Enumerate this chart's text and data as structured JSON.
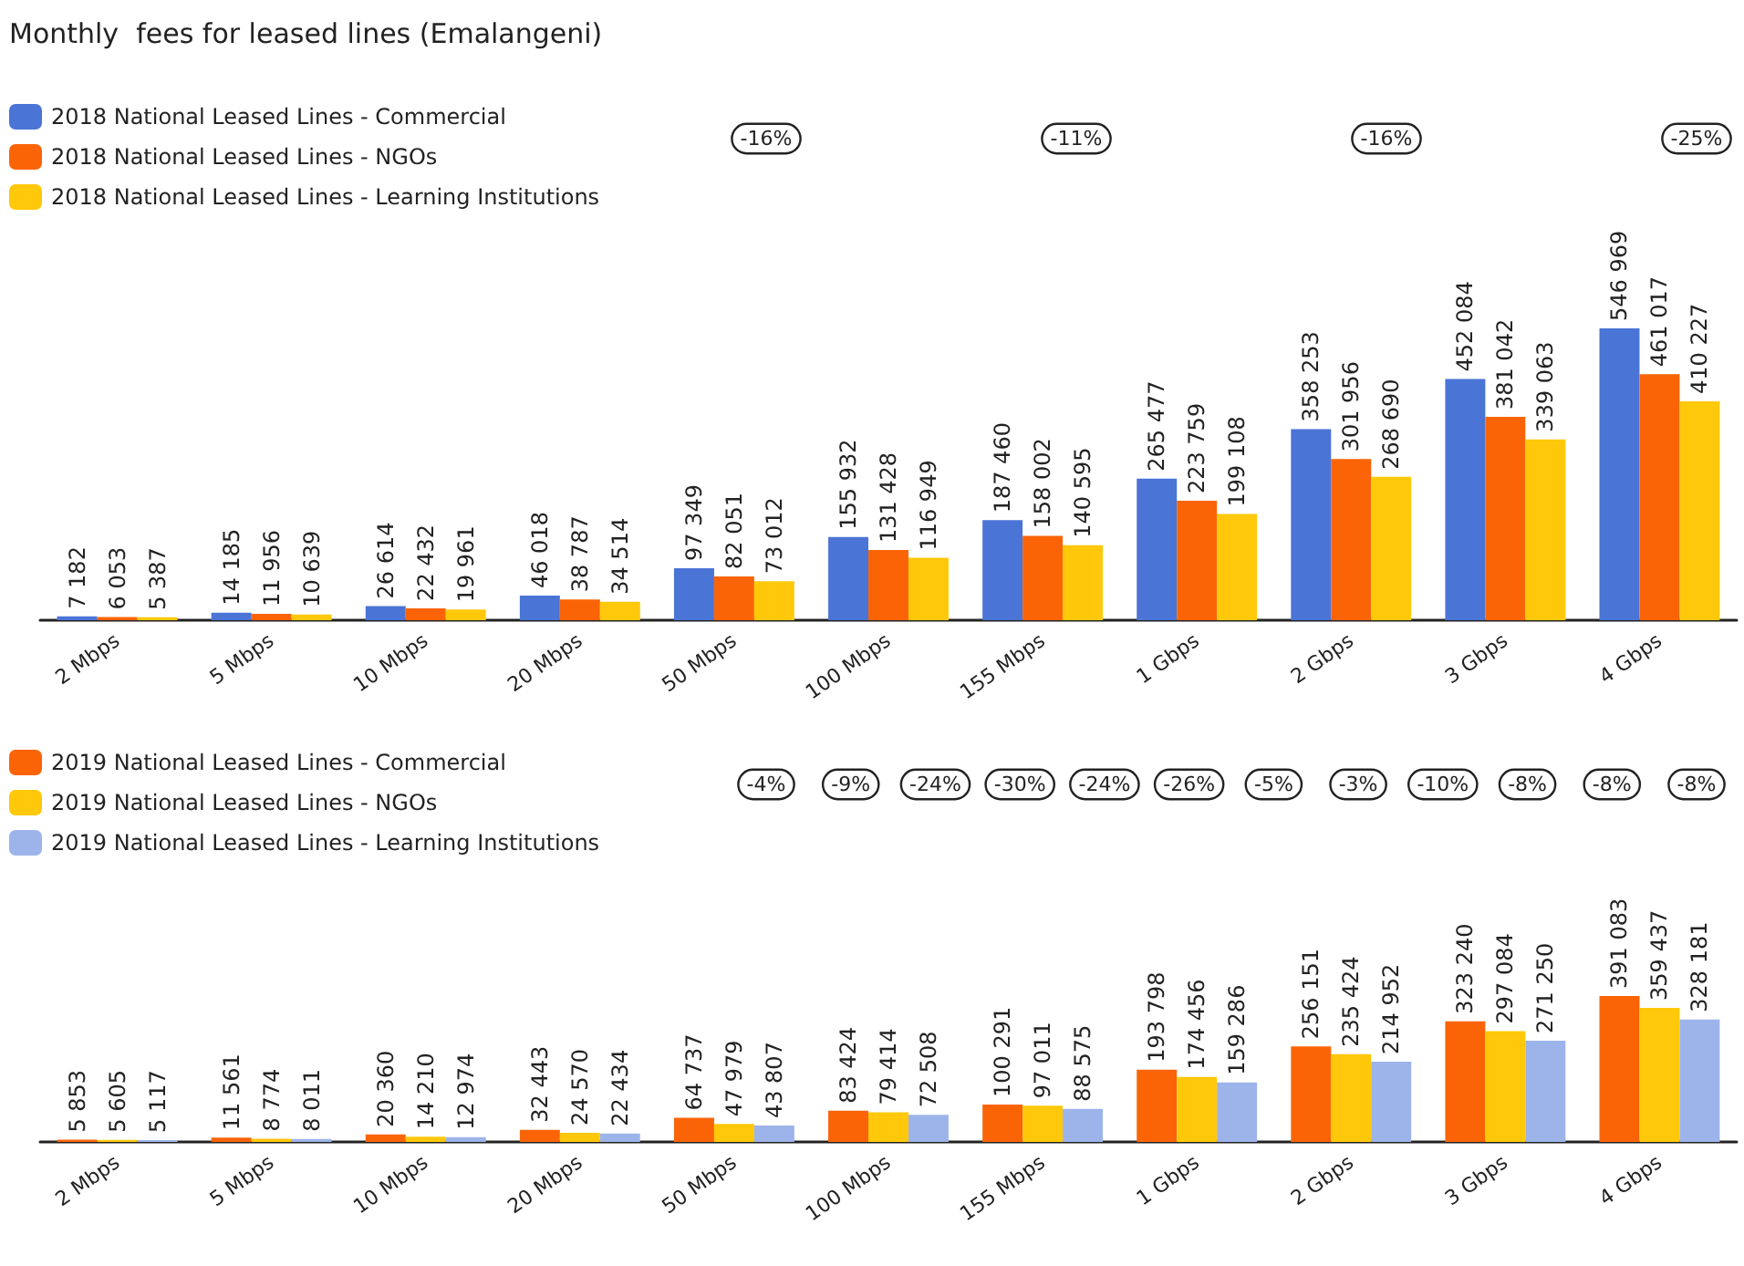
{
  "chart_data": [
    {
      "type": "bar",
      "title": "Monthly  fees for leased lines (Emalangeni)",
      "categories": [
        "2 Mbps",
        "5 Mbps",
        "10 Mbps",
        "20 Mbps",
        "50 Mbps",
        "100 Mbps",
        "155 Mbps",
        "1 Gbps",
        "2 Gbps",
        "3 Gbps",
        "4 Gbps"
      ],
      "series": [
        {
          "name": "2018 National Leased Lines - Commercial",
          "color": "#4a74d6",
          "values": [
            7182,
            14185,
            26614,
            46018,
            97349,
            155932,
            187460,
            265477,
            358253,
            452084,
            546969
          ]
        },
        {
          "name": "2018 National Leased Lines - NGOs",
          "color": "#fa6407",
          "values": [
            6053,
            11956,
            22432,
            38787,
            82051,
            131428,
            158002,
            223759,
            301956,
            381042,
            461017
          ]
        },
        {
          "name": "2018 National Leased Lines - Learning Institutions",
          "color": "#ffc80a",
          "values": [
            5387,
            10639,
            19961,
            34514,
            73012,
            116949,
            140595,
            199108,
            268690,
            339063,
            410227
          ]
        }
      ],
      "data_labels": true,
      "legend": "top left",
      "annotations": [
        "-16%",
        "-11%",
        "-16%",
        "-25%"
      ]
    },
    {
      "type": "bar",
      "categories": [
        "2 Mbps",
        "5 Mbps",
        "10 Mbps",
        "20 Mbps",
        "50 Mbps",
        "100 Mbps",
        "155 Mbps",
        "1 Gbps",
        "2 Gbps",
        "3 Gbps",
        "4 Gbps"
      ],
      "series": [
        {
          "name": "2019 National Leased Lines - Commercial",
          "color": "#fa6407",
          "values": [
            5853,
            11561,
            20360,
            32443,
            64737,
            83424,
            100291,
            193798,
            256151,
            323240,
            391083
          ]
        },
        {
          "name": "2019 National Leased Lines - NGOs",
          "color": "#ffc80a",
          "values": [
            5605,
            8774,
            14210,
            24570,
            47979,
            79414,
            97011,
            174456,
            235424,
            297084,
            359437
          ]
        },
        {
          "name": "2019 National Leased Lines - Learning Institutions",
          "color": "#9db4ea",
          "values": [
            5117,
            8011,
            12974,
            22434,
            43807,
            72508,
            88575,
            159286,
            214952,
            271250,
            328181
          ]
        }
      ],
      "data_labels": true,
      "legend": "top left",
      "annotations": [
        "-4%",
        "-9%",
        "-24%",
        "-30%",
        "-24%",
        "-26%",
        "-5%",
        "-3%",
        "-10%",
        "-8%",
        "-8%",
        "-8%"
      ]
    }
  ]
}
